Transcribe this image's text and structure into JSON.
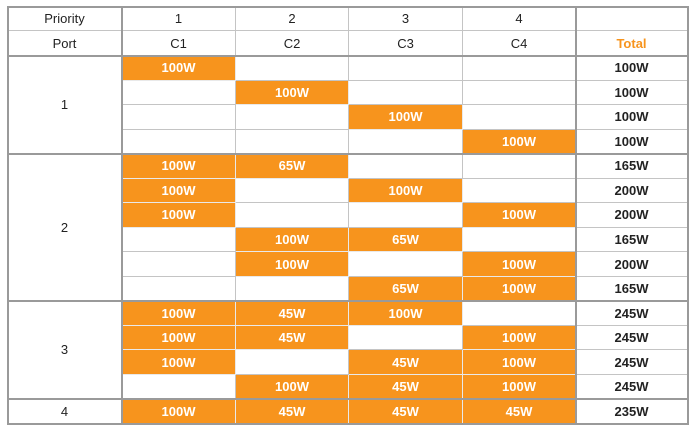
{
  "table": {
    "header": {
      "priority_label": "Priority",
      "priorities": [
        "1",
        "2",
        "3",
        "4"
      ],
      "port_label": "Port",
      "ports": [
        "C1",
        "C2",
        "C3",
        "C4"
      ],
      "total_label": "Total"
    },
    "groups": [
      {
        "priority": "1",
        "rows": [
          {
            "cells": [
              "100W",
              null,
              null,
              null
            ],
            "total": "100W"
          },
          {
            "cells": [
              null,
              "100W",
              null,
              null
            ],
            "total": "100W"
          },
          {
            "cells": [
              null,
              null,
              "100W",
              null
            ],
            "total": "100W"
          },
          {
            "cells": [
              null,
              null,
              null,
              "100W"
            ],
            "total": "100W"
          }
        ]
      },
      {
        "priority": "2",
        "rows": [
          {
            "cells": [
              "100W",
              "65W",
              null,
              null
            ],
            "total": "165W"
          },
          {
            "cells": [
              "100W",
              null,
              "100W",
              null
            ],
            "total": "200W"
          },
          {
            "cells": [
              "100W",
              null,
              null,
              "100W"
            ],
            "total": "200W"
          },
          {
            "cells": [
              null,
              "100W",
              "65W",
              null
            ],
            "total": "165W"
          },
          {
            "cells": [
              null,
              "100W",
              null,
              "100W"
            ],
            "total": "200W"
          },
          {
            "cells": [
              null,
              null,
              "65W",
              "100W"
            ],
            "total": "165W"
          }
        ]
      },
      {
        "priority": "3",
        "rows": [
          {
            "cells": [
              "100W",
              "45W",
              "100W",
              null
            ],
            "total": "245W"
          },
          {
            "cells": [
              "100W",
              "45W",
              null,
              "100W"
            ],
            "total": "245W"
          },
          {
            "cells": [
              "100W",
              null,
              "45W",
              "100W"
            ],
            "total": "245W"
          },
          {
            "cells": [
              null,
              "100W",
              "45W",
              "100W"
            ],
            "total": "245W"
          }
        ]
      },
      {
        "priority": "4",
        "rows": [
          {
            "cells": [
              "100W",
              "45W",
              "45W",
              "45W"
            ],
            "total": "235W"
          }
        ]
      }
    ]
  }
}
